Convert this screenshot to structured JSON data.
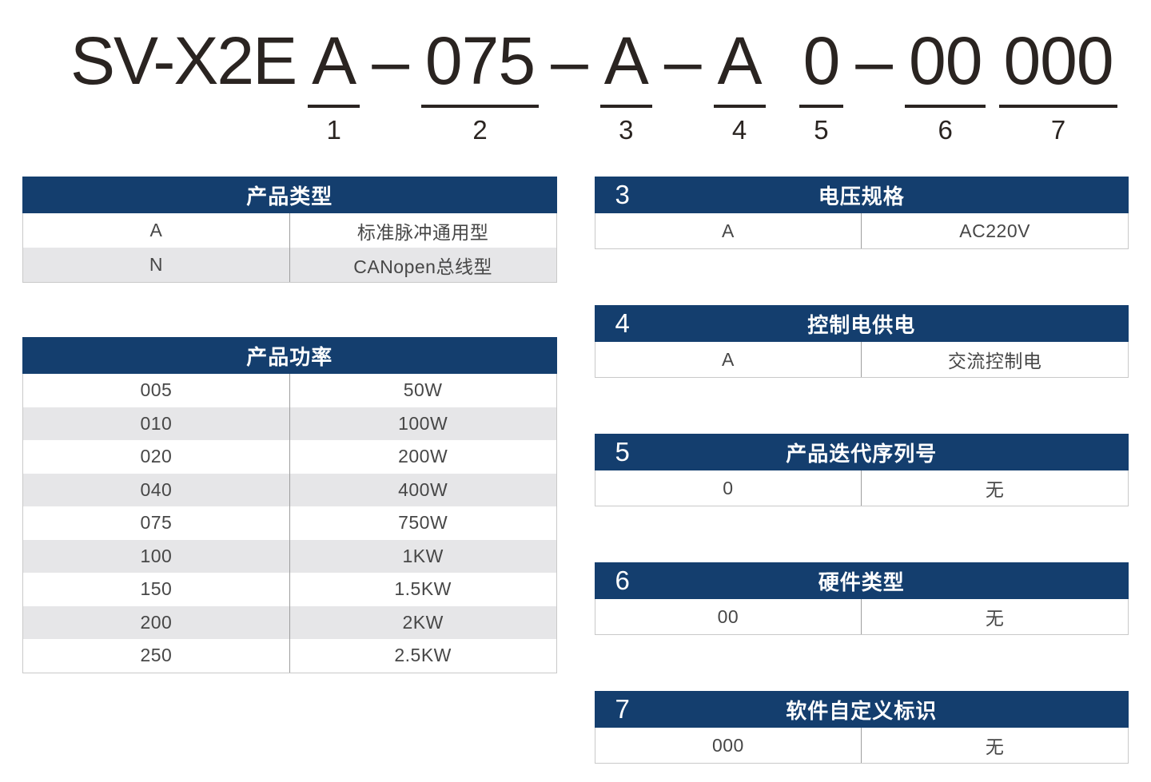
{
  "model_code": {
    "prefix": "SV-X2E",
    "separator": "–",
    "segments": [
      {
        "value": "A",
        "num": "1"
      },
      {
        "value": "075",
        "num": "2"
      },
      {
        "value": "A",
        "num": "3"
      },
      {
        "value": "A",
        "num": "4"
      },
      {
        "value": "0",
        "num": "5"
      },
      {
        "value": "00",
        "num": "6"
      },
      {
        "value": "000",
        "num": "7"
      }
    ]
  },
  "tables": {
    "product_type": {
      "number": "",
      "title": "产品类型",
      "rows": [
        [
          "A",
          "标准脉冲通用型"
        ],
        [
          "N",
          "CANopen总线型"
        ]
      ]
    },
    "product_power": {
      "number": "",
      "title": "产品功率",
      "rows": [
        [
          "005",
          "50W"
        ],
        [
          "010",
          "100W"
        ],
        [
          "020",
          "200W"
        ],
        [
          "040",
          "400W"
        ],
        [
          "075",
          "750W"
        ],
        [
          "100",
          "1KW"
        ],
        [
          "150",
          "1.5KW"
        ],
        [
          "200",
          "2KW"
        ],
        [
          "250",
          "2.5KW"
        ]
      ]
    },
    "voltage_spec": {
      "number": "3",
      "title": "电压规格",
      "rows": [
        [
          "A",
          "AC220V"
        ]
      ]
    },
    "control_power": {
      "number": "4",
      "title": "控制电供电",
      "rows": [
        [
          "A",
          "交流控制电"
        ]
      ]
    },
    "iteration_serial": {
      "number": "5",
      "title": "产品迭代序列号",
      "rows": [
        [
          "0",
          "无"
        ]
      ]
    },
    "hardware_type": {
      "number": "6",
      "title": "硬件类型",
      "rows": [
        [
          "00",
          "无"
        ]
      ]
    },
    "software_id": {
      "number": "7",
      "title": "软件自定义标识",
      "rows": [
        [
          "000",
          "无"
        ]
      ]
    }
  },
  "colors": {
    "header_bg": "#143e6e",
    "row_alt_bg": "#e6e6e8",
    "divider": "#9e9e9e",
    "table_border": "#c9c9c9",
    "text_dark": "#2a2421",
    "cell_text": "#474747"
  }
}
